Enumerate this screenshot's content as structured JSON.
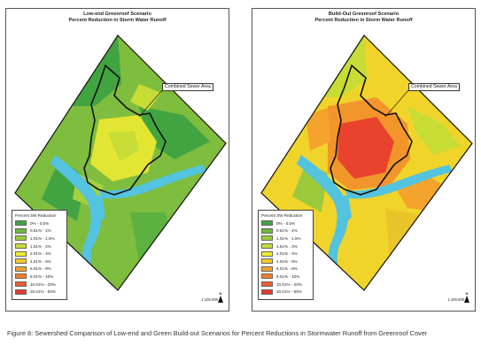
{
  "maps": [
    {
      "title_line1": "Low-end Greenroof Scenario",
      "title_line2": "Percent Reduction in Storm Water Runoff",
      "callout": "Combined Sewer Area",
      "scale": "1:100,000",
      "legend_title": "Percent SW Reduction",
      "legend": [
        {
          "label": "0% - 0.5%",
          "color": "#41a441"
        },
        {
          "label": "0.51% - 1%",
          "color": "#6fba3e"
        },
        {
          "label": "1.01% - 1.5%",
          "color": "#9bcb3c"
        },
        {
          "label": "1.51% - 2%",
          "color": "#c8dc36"
        },
        {
          "label": "2.01% - 4%",
          "color": "#f1ec2a"
        },
        {
          "label": "4.01% - 6%",
          "color": "#f6c92a"
        },
        {
          "label": "6.01% - 8%",
          "color": "#f4a32c"
        },
        {
          "label": "8.01% - 10%",
          "color": "#f27f2e"
        },
        {
          "label": "10.01% - 20%",
          "color": "#ee5a30"
        },
        {
          "label": "20.01% - 55%",
          "color": "#e63a2d"
        }
      ]
    },
    {
      "title_line1": "Build-Out Greenroof Scenario",
      "title_line2": "Percent Reduction in Storm Water Runoff",
      "callout": "Combined Sewer Area",
      "scale": "1:100,000",
      "legend_title": "Percent SW Reduction",
      "legend": [
        {
          "label": "0% - 0.5%",
          "color": "#41a441"
        },
        {
          "label": "0.51% - 1%",
          "color": "#6fba3e"
        },
        {
          "label": "1.01% - 1.5%",
          "color": "#9bcb3c"
        },
        {
          "label": "1.51% - 2%",
          "color": "#c8dc36"
        },
        {
          "label": "2.01% - 4%",
          "color": "#f1ec2a"
        },
        {
          "label": "4.01% - 6%",
          "color": "#f6c92a"
        },
        {
          "label": "6.01% - 8%",
          "color": "#f4a32c"
        },
        {
          "label": "8.01% - 10%",
          "color": "#f27f2e"
        },
        {
          "label": "10.01% - 20%",
          "color": "#ee5a30"
        },
        {
          "label": "20.01% - 55%",
          "color": "#e63a2d"
        }
      ]
    }
  ],
  "north_label": "N",
  "caption": "Figure 8:  Sewershed Comparison of Low-end and Green Build-out Scenarios for Percent Reductions in Stormwater Runoff from Greenroof Cover",
  "colors": {
    "water": "#53c3df",
    "outline": "#111111",
    "low_base": "#7fbd3e",
    "low_dark": "#41a441",
    "low_yellow": "#e3e533",
    "build_base": "#f1d42a",
    "build_orange": "#f2962c",
    "build_red": "#e9432e"
  }
}
